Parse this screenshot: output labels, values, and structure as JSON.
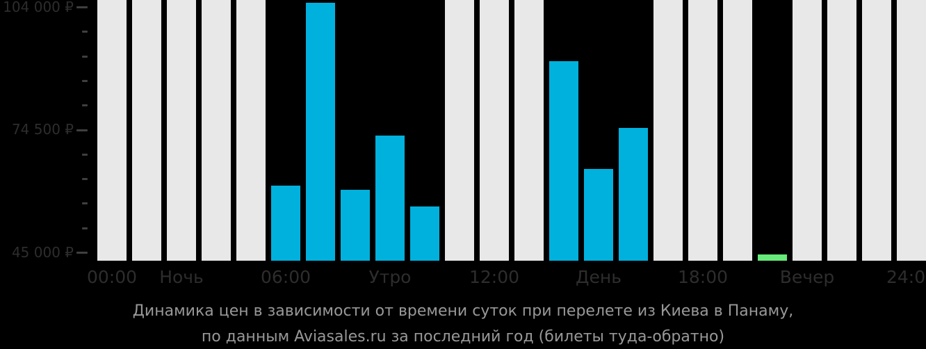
{
  "palette": {
    "background": "#000000",
    "bar_empty": "#E8E8E8",
    "bar_price": "#00B1DD",
    "bar_min": "#66EA7A",
    "axis_text": "#2d2d2d",
    "tick": "#3f3f3f",
    "caption_text": "#989898"
  },
  "chart_data": {
    "type": "bar",
    "title": "Динамика цен в зависимости от времени суток при перелете из Киева в Панаму,",
    "subtitle": "по данным Aviasales.ru за последний год (билеты туда-обратно)",
    "legend_position": "none",
    "grid": false,
    "currency": "₽",
    "y_axis": {
      "tick_labels": [
        "104 000 ₽",
        "74 500 ₽",
        "45 000 ₽"
      ],
      "tick_values": [
        104000,
        74500,
        45000
      ],
      "minor_ticks_between_majors": 4,
      "baseline_value": 43000
    },
    "x_axis": {
      "tick_labels": [
        {
          "label": "00:00",
          "bar_index": 0
        },
        {
          "label": "Ночь",
          "bar_index": 2
        },
        {
          "label": "06:00",
          "bar_index": 5
        },
        {
          "label": "Утро",
          "bar_index": 8
        },
        {
          "label": "12:00",
          "bar_index": 11
        },
        {
          "label": "День",
          "bar_index": 14
        },
        {
          "label": "18:00",
          "bar_index": 17
        },
        {
          "label": "Вечер",
          "bar_index": 20
        },
        {
          "label": "24:00",
          "bar_index": 23
        }
      ]
    },
    "bars": [
      {
        "slot": 0,
        "value": null,
        "kind": "empty"
      },
      {
        "slot": 1,
        "value": null,
        "kind": "empty"
      },
      {
        "slot": 2,
        "value": null,
        "kind": "empty"
      },
      {
        "slot": 3,
        "value": null,
        "kind": "empty"
      },
      {
        "slot": 4,
        "value": null,
        "kind": "empty"
      },
      {
        "slot": 5,
        "value": 61000,
        "kind": "price"
      },
      {
        "slot": 6,
        "value": 105000,
        "kind": "price"
      },
      {
        "slot": 7,
        "value": 60000,
        "kind": "price"
      },
      {
        "slot": 8,
        "value": 73000,
        "kind": "price"
      },
      {
        "slot": 9,
        "value": 56000,
        "kind": "price"
      },
      {
        "slot": 10,
        "value": null,
        "kind": "empty"
      },
      {
        "slot": 11,
        "value": null,
        "kind": "empty"
      },
      {
        "slot": 12,
        "value": null,
        "kind": "empty"
      },
      {
        "slot": 13,
        "value": 91000,
        "kind": "price"
      },
      {
        "slot": 14,
        "value": 65000,
        "kind": "price"
      },
      {
        "slot": 15,
        "value": 75000,
        "kind": "price"
      },
      {
        "slot": 16,
        "value": null,
        "kind": "empty"
      },
      {
        "slot": 17,
        "value": null,
        "kind": "empty"
      },
      {
        "slot": 18,
        "value": null,
        "kind": "empty"
      },
      {
        "slot": 19,
        "value": 44500,
        "kind": "min"
      },
      {
        "slot": 20,
        "value": null,
        "kind": "empty"
      },
      {
        "slot": 21,
        "value": null,
        "kind": "empty"
      },
      {
        "slot": 22,
        "value": null,
        "kind": "empty"
      },
      {
        "slot": 23,
        "value": null,
        "kind": "empty"
      }
    ]
  }
}
